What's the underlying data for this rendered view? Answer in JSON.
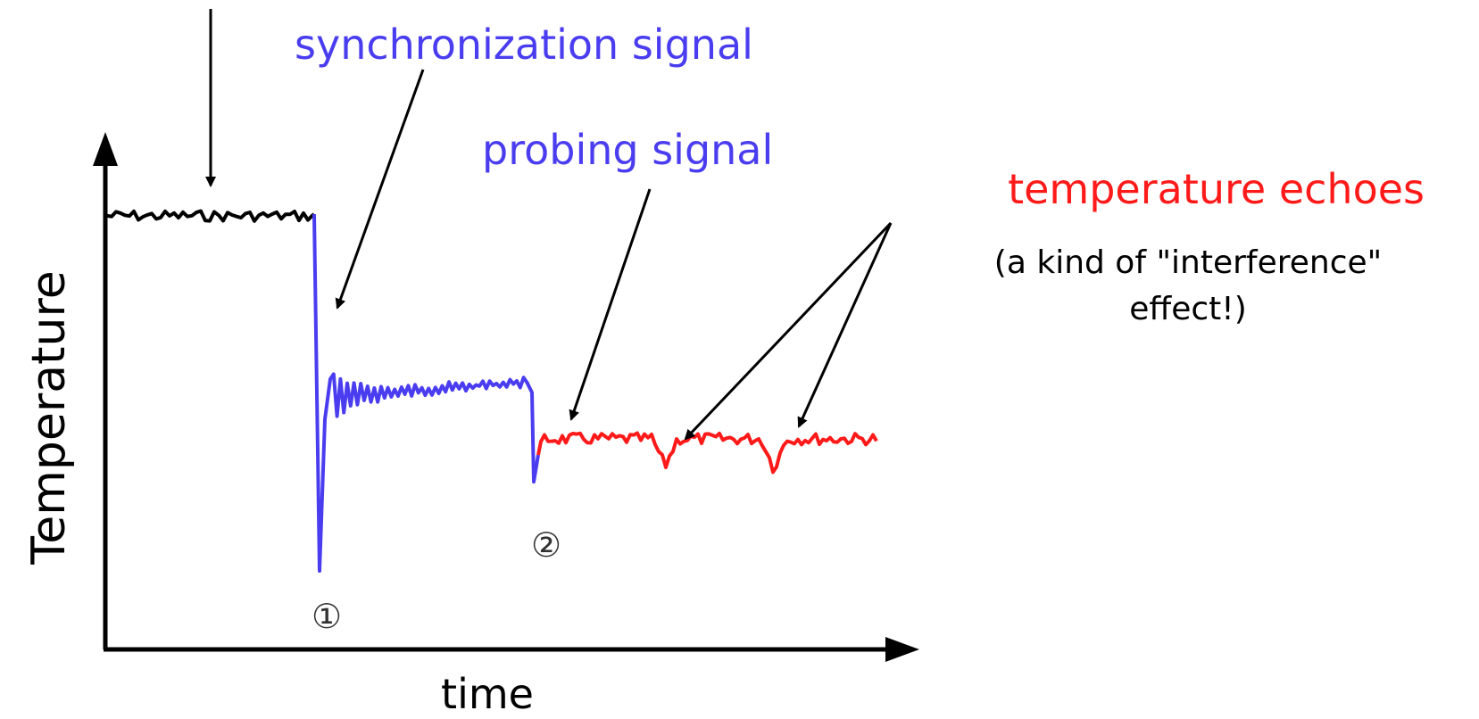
{
  "axes": {
    "y_label": "Temperature",
    "x_label": "time"
  },
  "annotations": {
    "sync": "synchronization signal",
    "probe": "probing signal",
    "echo": "temperature echoes",
    "note_line1": "(a kind of \"interference\"",
    "note_line2": "effect!)"
  },
  "markers": {
    "m1": "①",
    "m2": "②"
  },
  "colors": {
    "baseline": "#000000",
    "signal": "#4a3df0",
    "echo": "#ff1a1a",
    "axis": "#000000"
  }
}
